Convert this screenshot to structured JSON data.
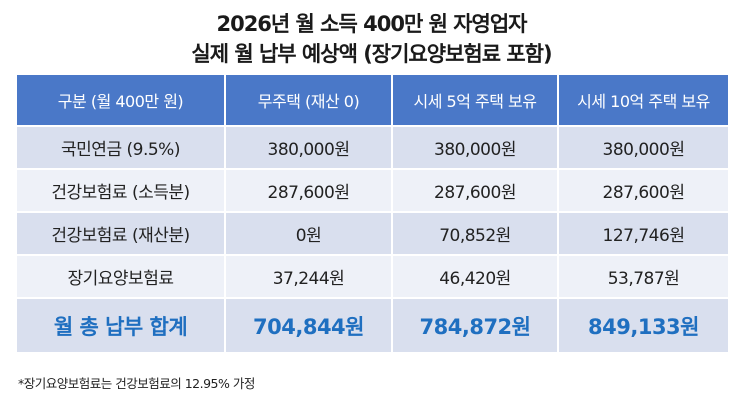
{
  "title": {
    "line1": "2026년 월 소득 400만 원 자영업자",
    "line2": "실제 월 납부 예상액 (장기요양보험료 포함)"
  },
  "table": {
    "headers": [
      "구분 (월 400만 원)",
      "무주택 (재산 0)",
      "시세 5억 주택 보유",
      "시세 10억 주택 보유"
    ],
    "rows": [
      [
        "국민연금 (9.5%)",
        "380,000원",
        "380,000원",
        "380,000원"
      ],
      [
        "건강보험료 (소득분)",
        "287,600원",
        "287,600원",
        "287,600원"
      ],
      [
        "건강보험료 (재산분)",
        "0원",
        "70,852원",
        "127,746원"
      ],
      [
        "장기요양보험료",
        "37,244원",
        "46,420원",
        "53,787원"
      ]
    ],
    "total": [
      "월 총 납부 합계",
      "704,844원",
      "784,872원",
      "849,133원"
    ]
  },
  "note": "*장기요양보험료는 건강보험료의 12.95% 가정",
  "colors": {
    "header": "#4a78c8",
    "total_text": "#1f6fc0",
    "row_dark": "#d9dfee",
    "row_light": "#eef1f8"
  }
}
